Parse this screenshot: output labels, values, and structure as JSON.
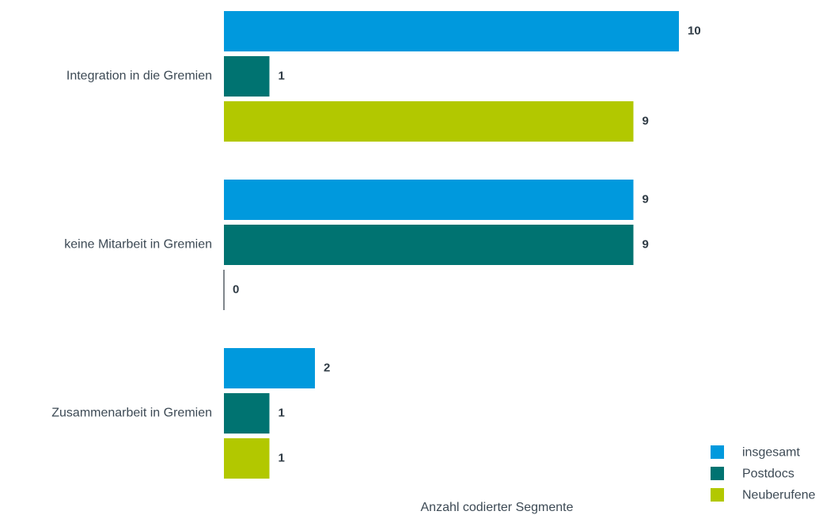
{
  "chart_data": {
    "type": "bar",
    "orientation": "horizontal",
    "categories": [
      "Integration in die Gremien",
      "keine Mitarbeit in Gremien",
      "Zusammenarbeit in Gremien"
    ],
    "series": [
      {
        "name": "insgesamt",
        "color": "#0099dd",
        "values": [
          10,
          9,
          2
        ]
      },
      {
        "name": "Postdocs",
        "color": "#007371",
        "values": [
          1,
          9,
          1
        ]
      },
      {
        "name": "Neuberufene",
        "color": "#b2c800",
        "values": [
          9,
          0,
          1
        ]
      }
    ],
    "xlabel": "Anzahl codierter Segmente",
    "ylabel": "",
    "xlim": [
      0,
      10
    ],
    "grid": false,
    "data_labels": true,
    "legend_position": "bottom-right"
  }
}
